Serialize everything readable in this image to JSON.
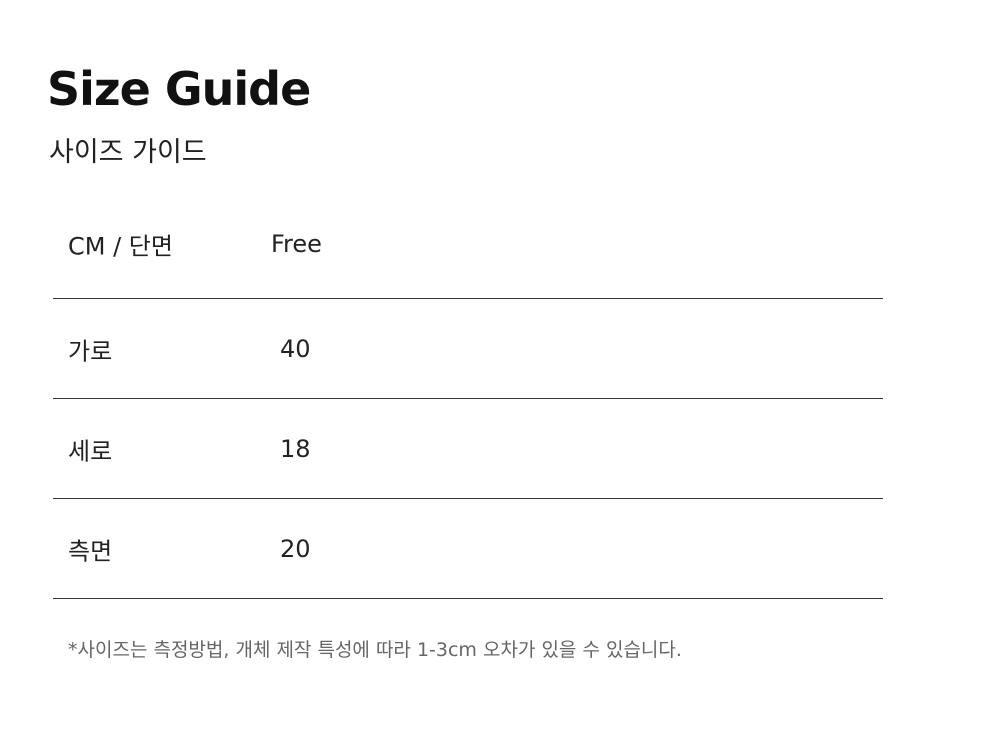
{
  "title": "Size Guide",
  "subtitle": "사이즈 가이드",
  "table": {
    "header": {
      "label": "CM / 단면",
      "value": "Free"
    },
    "rows": [
      {
        "label": "가로",
        "value": "40"
      },
      {
        "label": "세로",
        "value": "18"
      },
      {
        "label": "측면",
        "value": "20"
      }
    ]
  },
  "note": "*사이즈는 측정방법, 개체 제작 특성에 따라 1-3cm 오차가 있을 수 있습니다."
}
